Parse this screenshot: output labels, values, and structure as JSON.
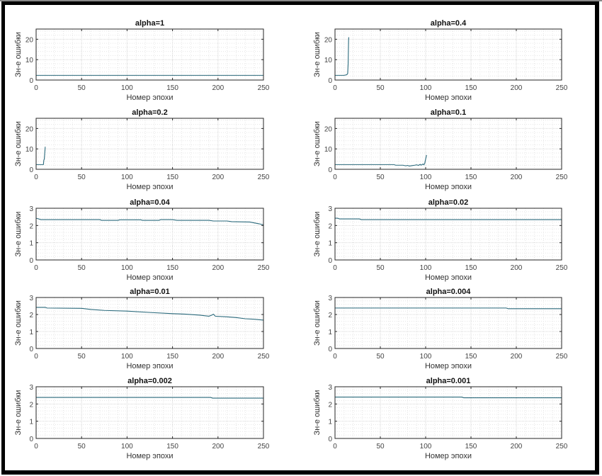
{
  "line_color": "#2b6a7c",
  "chart_data": [
    {
      "type": "line",
      "title": "alpha=1",
      "xlabel": "Номер эпохи",
      "ylabel": "Зн-е ошибки",
      "xlim": [
        0,
        250
      ],
      "ylim": [
        0,
        25
      ],
      "xticks": [
        "0",
        "50",
        "100",
        "150",
        "200",
        "250"
      ],
      "yticks": [
        "0",
        "10",
        "20"
      ],
      "ytick_values": [
        0,
        10,
        20
      ],
      "grid": true,
      "x": [
        0,
        250
      ],
      "y": [
        2.3,
        2.3
      ]
    },
    {
      "type": "line",
      "title": "alpha=0.4",
      "xlabel": "Номер эпохи",
      "ylabel": "Зн-е ошибки",
      "xlim": [
        0,
        250
      ],
      "ylim": [
        0,
        25
      ],
      "xticks": [
        "0",
        "50",
        "100",
        "150",
        "200",
        "250"
      ],
      "yticks": [
        "0",
        "10",
        "20"
      ],
      "ytick_values": [
        0,
        10,
        20
      ],
      "grid": true,
      "x": [
        0,
        10,
        13,
        14,
        14.5,
        15,
        15.2
      ],
      "y": [
        2.3,
        2.3,
        2.6,
        3.2,
        8,
        20,
        21
      ]
    },
    {
      "type": "line",
      "title": "alpha=0.2",
      "xlabel": "Номер эпохи",
      "ylabel": "Зн-е ошибки",
      "xlim": [
        0,
        250
      ],
      "ylim": [
        0,
        25
      ],
      "xticks": [
        "0",
        "50",
        "100",
        "150",
        "200",
        "250"
      ],
      "yticks": [
        "0",
        "10",
        "20"
      ],
      "ytick_values": [
        0,
        10,
        20
      ],
      "grid": true,
      "x": [
        0,
        8,
        8.5,
        9,
        9.5,
        10
      ],
      "y": [
        2.3,
        2.3,
        4.5,
        5,
        8,
        11
      ]
    },
    {
      "type": "line",
      "title": "alpha=0.1",
      "xlabel": "Номер эпохи",
      "ylabel": "Зн-е ошибки",
      "xlim": [
        0,
        250
      ],
      "ylim": [
        0,
        25
      ],
      "xticks": [
        "0",
        "50",
        "100",
        "150",
        "200",
        "250"
      ],
      "yticks": [
        "0",
        "10",
        "20"
      ],
      "ytick_values": [
        0,
        10,
        20
      ],
      "grid": true,
      "x": [
        0,
        65,
        67,
        75,
        78,
        80,
        82,
        85,
        88,
        90,
        92,
        94,
        95,
        97,
        98,
        99,
        100,
        101
      ],
      "y": [
        2.3,
        2.3,
        2.0,
        2.0,
        1.7,
        1.9,
        1.6,
        1.8,
        2.0,
        2.2,
        1.9,
        2.4,
        2.0,
        2.6,
        2.2,
        2.9,
        5.0,
        7.0
      ]
    },
    {
      "type": "line",
      "title": "alpha=0.04",
      "xlabel": "Номер эпохи",
      "ylabel": "Зн-е ошибки",
      "xlim": [
        0,
        250
      ],
      "ylim": [
        0,
        3
      ],
      "xticks": [
        "0",
        "50",
        "100",
        "150",
        "200",
        "250"
      ],
      "yticks": [
        "0",
        "1",
        "2",
        "3"
      ],
      "ytick_values": [
        0,
        1,
        2,
        3
      ],
      "grid": true,
      "x": [
        0,
        3,
        5,
        70,
        72,
        90,
        92,
        115,
        117,
        135,
        137,
        150,
        155,
        190,
        195,
        210,
        215,
        235,
        240,
        245,
        250
      ],
      "y": [
        2.42,
        2.38,
        2.34,
        2.34,
        2.3,
        2.3,
        2.33,
        2.33,
        2.3,
        2.3,
        2.34,
        2.34,
        2.3,
        2.3,
        2.26,
        2.26,
        2.22,
        2.2,
        2.15,
        2.1,
        2.04
      ]
    },
    {
      "type": "line",
      "title": "alpha=0.02",
      "xlabel": "Номер эпохи",
      "ylabel": "Зн-е ошибки",
      "xlim": [
        0,
        250
      ],
      "ylim": [
        0,
        3
      ],
      "xticks": [
        "0",
        "50",
        "100",
        "150",
        "200",
        "250"
      ],
      "yticks": [
        "0",
        "1",
        "2",
        "3"
      ],
      "ytick_values": [
        0,
        1,
        2,
        3
      ],
      "grid": true,
      "x": [
        0,
        3,
        5,
        27,
        29,
        250
      ],
      "y": [
        2.42,
        2.42,
        2.38,
        2.38,
        2.34,
        2.34
      ]
    },
    {
      "type": "line",
      "title": "alpha=0.01",
      "xlabel": "Номер эпохи",
      "ylabel": "Зн-е ошибки",
      "xlim": [
        0,
        250
      ],
      "ylim": [
        0,
        3
      ],
      "xticks": [
        "0",
        "50",
        "100",
        "150",
        "200",
        "250"
      ],
      "yticks": [
        "0",
        "1",
        "2",
        "3"
      ],
      "ytick_values": [
        0,
        1,
        2,
        3
      ],
      "grid": true,
      "x": [
        0,
        10,
        12,
        50,
        60,
        75,
        100,
        125,
        150,
        165,
        180,
        190,
        193,
        195,
        197,
        210,
        220,
        230,
        240,
        250
      ],
      "y": [
        2.42,
        2.42,
        2.38,
        2.36,
        2.3,
        2.24,
        2.2,
        2.12,
        2.05,
        2.02,
        1.96,
        1.9,
        1.96,
        2.02,
        1.9,
        1.86,
        1.82,
        1.75,
        1.72,
        1.67
      ]
    },
    {
      "type": "line",
      "title": "alpha=0.004",
      "xlabel": "Номер эпохи",
      "ylabel": "Зн-е ошибки",
      "xlim": [
        0,
        250
      ],
      "ylim": [
        0,
        3
      ],
      "xticks": [
        "0",
        "50",
        "100",
        "150",
        "200",
        "250"
      ],
      "yticks": [
        "0",
        "1",
        "2",
        "3"
      ],
      "ytick_values": [
        0,
        1,
        2,
        3
      ],
      "grid": true,
      "x": [
        0,
        189,
        191,
        250
      ],
      "y": [
        2.38,
        2.38,
        2.34,
        2.34
      ]
    },
    {
      "type": "line",
      "title": "alpha=0.002",
      "xlabel": "Номер эпохи",
      "ylabel": "Зн-е ошибки",
      "xlim": [
        0,
        250
      ],
      "ylim": [
        0,
        3
      ],
      "xticks": [
        "0",
        "50",
        "100",
        "150",
        "200",
        "250"
      ],
      "yticks": [
        "0",
        "1",
        "2",
        "3"
      ],
      "ytick_values": [
        0,
        1,
        2,
        3
      ],
      "grid": true,
      "x": [
        0,
        192,
        194,
        250
      ],
      "y": [
        2.38,
        2.38,
        2.34,
        2.34
      ]
    },
    {
      "type": "line",
      "title": "alpha=0.001",
      "xlabel": "Номер эпохи",
      "ylabel": "Зн-е ошибки",
      "xlim": [
        0,
        250
      ],
      "ylim": [
        0,
        3
      ],
      "xticks": [
        "0",
        "50",
        "100",
        "150",
        "200",
        "250"
      ],
      "yticks": [
        "0",
        "1",
        "2",
        "3"
      ],
      "ytick_values": [
        0,
        1,
        2,
        3
      ],
      "grid": true,
      "x": [
        0,
        140,
        142,
        250
      ],
      "y": [
        2.4,
        2.4,
        2.36,
        2.36
      ]
    }
  ]
}
